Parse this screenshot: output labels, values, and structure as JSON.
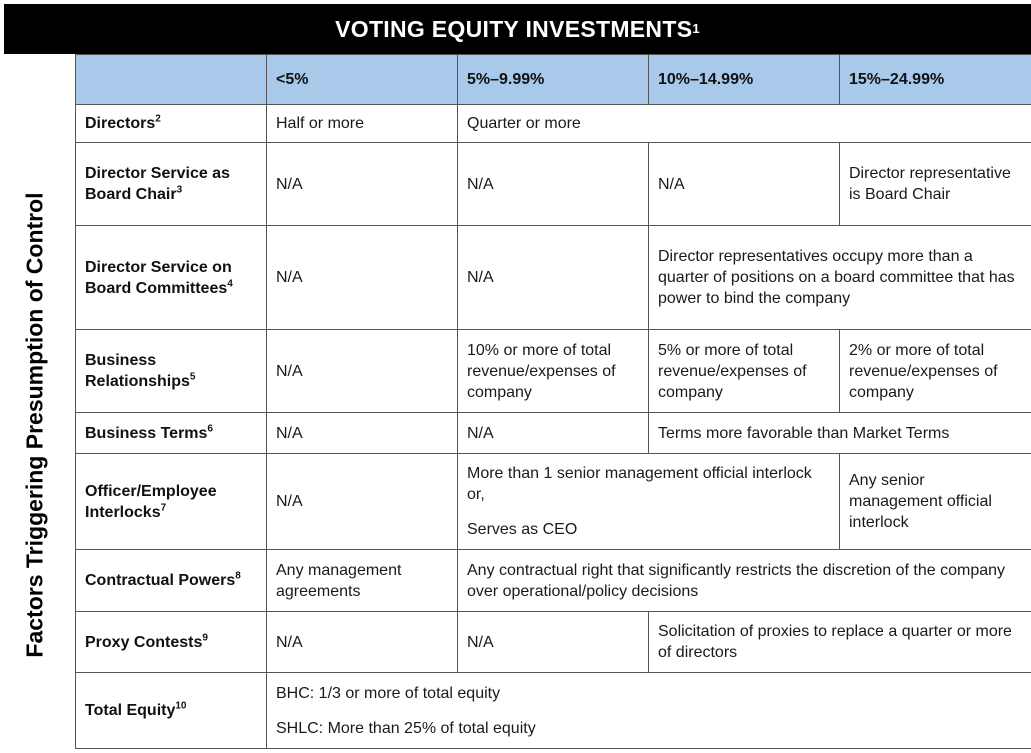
{
  "title": "VOTING EQUITY INVESTMENTS",
  "title_note": "1",
  "side_label": "Factors Triggering Presumption of Control",
  "columns": [
    "",
    "<5%",
    "5%–9.99%",
    "10%–14.99%",
    "15%–24.99%"
  ],
  "rows": {
    "directors": {
      "label": "Directors",
      "note": "2",
      "c1": "Half or more",
      "c2": "Quarter or more"
    },
    "chair": {
      "label": "Director Service as Board Chair",
      "note": "3",
      "c1": "N/A",
      "c2": "N/A",
      "c3": "N/A",
      "c4": "Director representative is Board Chair"
    },
    "committees": {
      "label": "Director Service on Board Committees",
      "note": "4",
      "c1": "N/A",
      "c2": "N/A",
      "c3": "Director representatives occupy more than a quarter of positions on a board committee that has power to bind the company"
    },
    "relationships": {
      "label": "Business Relationships",
      "note": "5",
      "c1": "N/A",
      "c2": "10% or more of total revenue/expenses of company",
      "c3": "5% or more of total revenue/expenses of company",
      "c4": "2% or more of total revenue/expenses of company"
    },
    "terms": {
      "label": "Business Terms",
      "note": "6",
      "c1": "N/A",
      "c2": "N/A",
      "c3": "Terms more favorable than Market Terms"
    },
    "interlocks": {
      "label": "Officer/Employee Interlocks",
      "note": "7",
      "c1": "N/A",
      "c2a": "More than 1 senior management official interlock or,",
      "c2b": "Serves as CEO",
      "c4": "Any senior management official interlock"
    },
    "contractual": {
      "label": "Contractual Powers",
      "note": "8",
      "c1": "Any management agreements",
      "c2": "Any contractual right that significantly restricts the discretion of the company over operational/policy decisions"
    },
    "proxy": {
      "label": "Proxy Contests",
      "note": "9",
      "c1": "N/A",
      "c2": "N/A",
      "c3": "Solicitation of proxies to replace a quarter or more of directors"
    },
    "equity": {
      "label": "Total Equity",
      "note": "10",
      "c1a": "BHC: 1/3 or more of total equity",
      "c1b": "SHLC: More than 25% of total equity"
    }
  },
  "colors": {
    "title_bg": "#000000",
    "header_bg": "#a9c9ea",
    "border": "#555555"
  }
}
